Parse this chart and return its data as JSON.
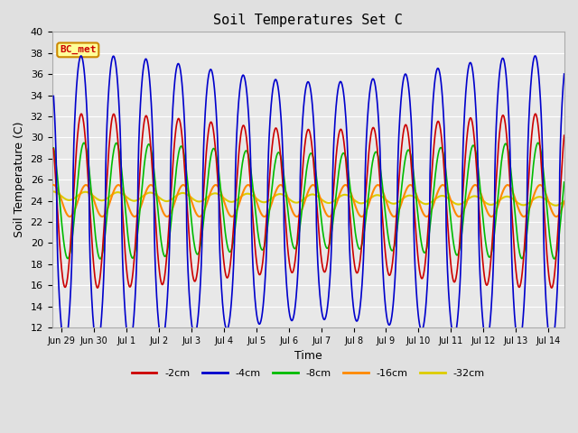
{
  "title": "Soil Temperatures Set C",
  "xlabel": "Time",
  "ylabel": "Soil Temperature (C)",
  "ylim": [
    12,
    40
  ],
  "yticks": [
    12,
    14,
    16,
    18,
    20,
    22,
    24,
    26,
    28,
    30,
    32,
    34,
    36,
    38,
    40
  ],
  "annotation": "BC_met",
  "annotation_color": "#cc0000",
  "annotation_bg": "#ffff99",
  "annotation_border": "#cc8800",
  "series": [
    {
      "label": "-2cm",
      "color": "#cc0000",
      "lw": 1.2
    },
    {
      "label": "-4cm",
      "color": "#0000cc",
      "lw": 1.2
    },
    {
      "label": "-8cm",
      "color": "#00bb00",
      "lw": 1.2
    },
    {
      "label": "-16cm",
      "color": "#ff8800",
      "lw": 1.5
    },
    {
      "label": "-32cm",
      "color": "#ddcc00",
      "lw": 1.5
    }
  ],
  "tick_labels": [
    "Jun 29",
    "Jun 30",
    "Jul 1",
    "Jul 2",
    "Jul 3",
    "Jul 4",
    "Jul 5",
    "Jul 6",
    "Jul 7",
    "Jul 8",
    "Jul 9",
    "Jul 10",
    "Jul 11",
    "Jul 12",
    "Jul 13",
    "Jul 14"
  ],
  "figsize": [
    6.4,
    4.8
  ],
  "dpi": 100,
  "bg_color": "#e0e0e0",
  "plot_bg": "#e8e8e8",
  "grid_color": "#ffffff",
  "xlim": [
    -0.3,
    15.5
  ]
}
